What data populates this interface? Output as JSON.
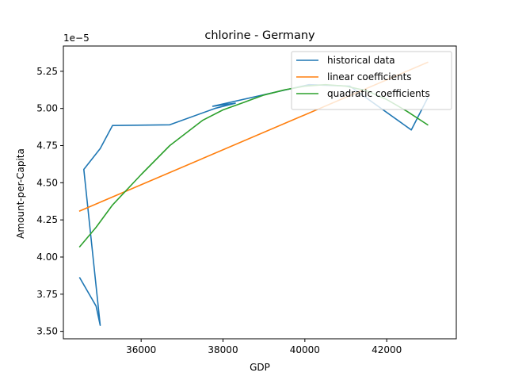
{
  "chart_data": {
    "type": "line",
    "title": "chlorine - Germany",
    "xlabel": "GDP",
    "ylabel": "Amount-per-Capita",
    "y_offset_label": "1e−5",
    "xlim": [
      34100,
      43700
    ],
    "ylim": [
      3.45,
      5.42
    ],
    "y_scale_note": "values in units of 1e-5",
    "x_ticks": [
      36000,
      38000,
      40000,
      42000
    ],
    "x_tick_labels": [
      "36000",
      "38000",
      "40000",
      "42000"
    ],
    "y_ticks": [
      3.5,
      3.75,
      4.0,
      4.25,
      4.5,
      4.75,
      5.0,
      5.25
    ],
    "y_tick_labels": [
      "3.50",
      "3.75",
      "4.00",
      "4.25",
      "4.50",
      "4.75",
      "5.00",
      "5.25"
    ],
    "grid": false,
    "legend_position": "top-right",
    "series": [
      {
        "name": "historical data",
        "color": "#1f77b4",
        "x": [
          34500,
          34900,
          35000,
          34600,
          35000,
          35300,
          36700,
          37800,
          38300,
          37750,
          40100,
          41100,
          42600,
          43000
        ],
        "y": [
          3.86,
          3.67,
          3.54,
          4.59,
          4.73,
          4.885,
          4.89,
          5.0,
          5.035,
          5.015,
          5.16,
          5.15,
          4.855,
          5.07
        ]
      },
      {
        "name": "linear coefficients",
        "color": "#ff7f0e",
        "x": [
          34500,
          43000
        ],
        "y": [
          4.31,
          5.31
        ]
      },
      {
        "name": "quadratic coefficients",
        "color": "#2ca02c",
        "x": [
          34500,
          34900,
          35300,
          36000,
          36700,
          37500,
          38000,
          38500,
          39000,
          39500,
          40000,
          40500,
          41000,
          41500,
          42000,
          42500,
          43000
        ],
        "y": [
          4.07,
          4.2,
          4.35,
          4.555,
          4.75,
          4.92,
          4.99,
          5.04,
          5.09,
          5.125,
          5.15,
          5.16,
          5.15,
          5.12,
          5.06,
          4.98,
          4.89
        ]
      }
    ]
  }
}
